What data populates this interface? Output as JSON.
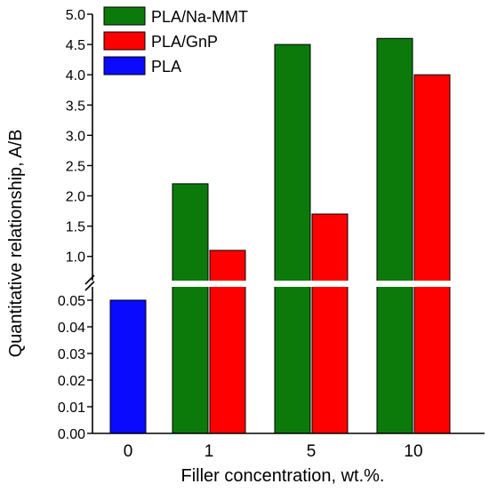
{
  "chart_data": {
    "type": "bar",
    "xlabel": "Filler concentration, wt.%.",
    "ylabel": "Quantitative relationship, A/B",
    "categories": [
      "0",
      "1",
      "5",
      "10"
    ],
    "series": [
      {
        "name": "PLA/Na-MMT",
        "color": "#0b7a0b",
        "values": [
          null,
          2.2,
          4.5,
          4.6
        ]
      },
      {
        "name": "PLA/GnP",
        "color": "#ff0000",
        "values": [
          null,
          1.1,
          1.7,
          4.0
        ]
      },
      {
        "name": "PLA",
        "color": "#0a0aff",
        "values": [
          0.05,
          null,
          null,
          null
        ]
      }
    ],
    "y_axis_broken": true,
    "y_lower_range": [
      0,
      0.055
    ],
    "y_upper_range": [
      0.6,
      5.0
    ],
    "y_lower_ticks": [
      "0.00",
      "0.01",
      "0.02",
      "0.03",
      "0.04",
      "0.05"
    ],
    "y_upper_ticks": [
      "1.0",
      "1.5",
      "2.0",
      "2.5",
      "3.0",
      "3.5",
      "4.0",
      "4.5",
      "5.0"
    ],
    "legend_position": "top-left",
    "grid": false
  }
}
